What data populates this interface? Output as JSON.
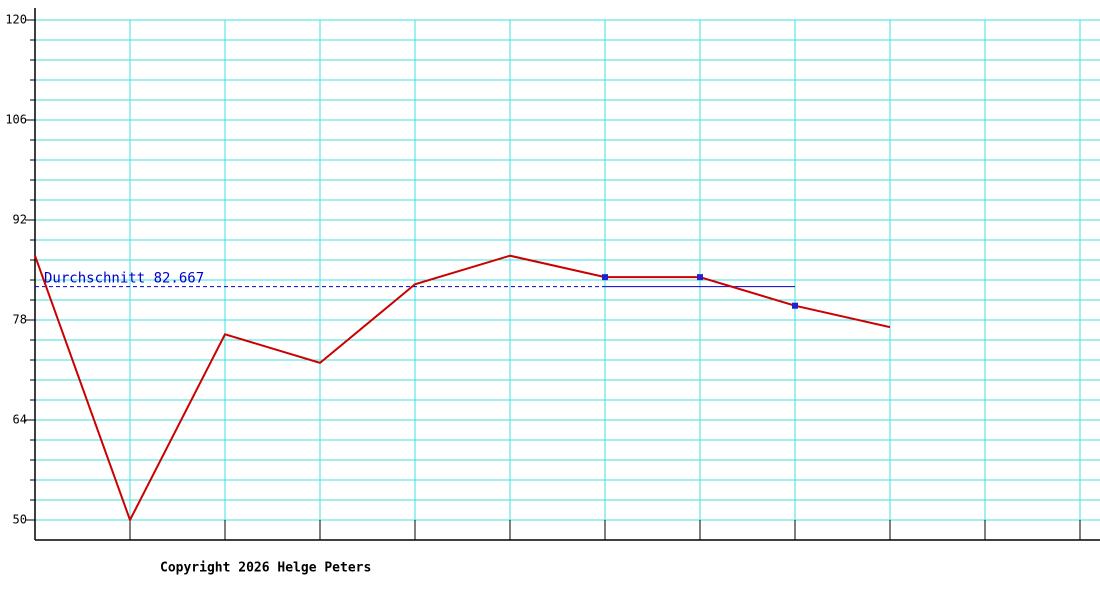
{
  "chart_data": {
    "type": "line",
    "categories": [
      null,
      null,
      null,
      null,
      null,
      null,
      null,
      null,
      null,
      null,
      null,
      null
    ],
    "series": [
      {
        "color": "#cc0000",
        "values": [
          87,
          50,
          76,
          72,
          83,
          87,
          84,
          84,
          80,
          77,
          null,
          null
        ]
      }
    ],
    "highlight_points": [
      6,
      7,
      8
    ],
    "highlight_color": "#2222cc",
    "average": 82.667,
    "average_label": "Durchschnitt 82.667",
    "average_color": "#0000cc",
    "ylim": [
      47.2,
      120
    ],
    "yticks": [
      50,
      64,
      78,
      92,
      106,
      120
    ],
    "minor_yticks": [
      50,
      52.8,
      55.6,
      58.4,
      61.2,
      64,
      66.8,
      69.6,
      72.4,
      75.2,
      78,
      80.8,
      83.6,
      86.4,
      89.2,
      92,
      94.8,
      97.6,
      100.4,
      103.2,
      106,
      108.8,
      111.6,
      114.4,
      117.2,
      120
    ],
    "grid": true,
    "grid_color": "#40e0e0"
  },
  "footer": "Copyright 2026 Helge Peters"
}
